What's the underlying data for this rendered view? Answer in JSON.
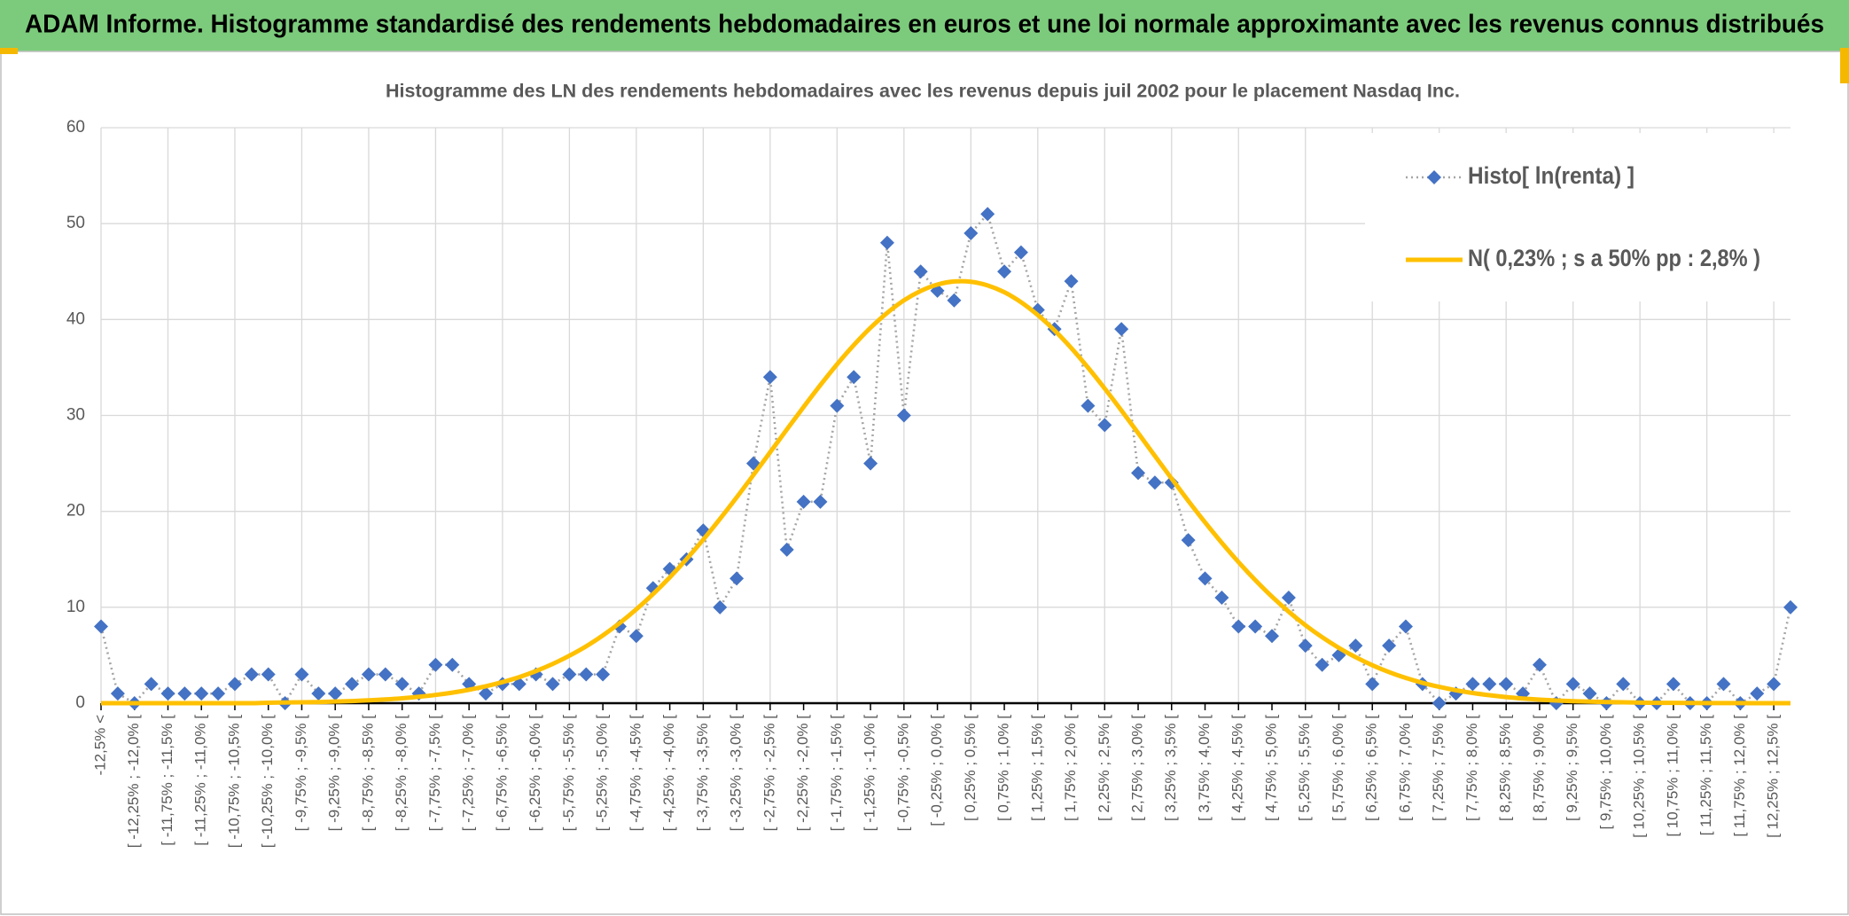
{
  "banner": {
    "title": "ADAM Informe. Histogramme standardisé des rendements hebdomadaires en euros et une loi normale approximante avec les revenus connus distribués"
  },
  "chart_data": {
    "type": "line",
    "title": "Histogramme des LN des rendements hebdomadaires avec les revenus depuis juil 2002 pour le placement Nasdaq Inc.",
    "categories": [
      "-12,5% <",
      null,
      "[ -12,25% ; -12,0% [",
      null,
      "[ -11,75% ; -11,5% [",
      null,
      "[ -11,25% ; -11,0% [",
      null,
      "[ -10,75% ; -10,5% [",
      null,
      "[ -10,25% ; -10,0% [",
      null,
      "[ -9,75% ; -9,5% [",
      null,
      "[ -9,25% ; -9,0% [",
      null,
      "[ -8,75% ; -8,5% [",
      null,
      "[ -8,25% ; -8,0% [",
      null,
      "[ -7,75% ; -7,5% [",
      null,
      "[ -7,25% ; -7,0% [",
      null,
      "[ -6,75% ; -6,5% [",
      null,
      "[ -6,25% ; -6,0% [",
      null,
      "[ -5,75% ; -5,5% [",
      null,
      "[ -5,25% ; -5,0% [",
      null,
      "[ -4,75% ; -4,5% [",
      null,
      "[ -4,25% ; -4,0% [",
      null,
      "[ -3,75% ; -3,5% [",
      null,
      "[ -3,25% ; -3,0% [",
      null,
      "[ -2,75% ; -2,5% [",
      null,
      "[ -2,25% ; -2,0% [",
      null,
      "[ -1,75% ; -1,5% [",
      null,
      "[ -1,25% ; -1,0% [",
      null,
      "[ -0,75% ; -0,5% [",
      null,
      "[ -0,25% ; 0,0% [",
      null,
      "[ 0,25% ; 0,5% [",
      null,
      "[ 0,75% ; 1,0% [",
      null,
      "[ 1,25% ; 1,5% [",
      null,
      "[ 1,75% ; 2,0% [",
      null,
      "[ 2,25% ; 2,5% [",
      null,
      "[ 2,75% ; 3,0% [",
      null,
      "[ 3,25% ; 3,5% [",
      null,
      "[ 3,75% ; 4,0% [",
      null,
      "[ 4,25% ; 4,5% [",
      null,
      "[ 4,75% ; 5,0% [",
      null,
      "[ 5,25% ; 5,5% [",
      null,
      "[ 5,75% ; 6,0% [",
      null,
      "[ 6,25% ; 6,5% [",
      null,
      "[ 6,75% ; 7,0% [",
      null,
      "[ 7,25% ; 7,5% [",
      null,
      "[ 7,75% ; 8,0% [",
      null,
      "[ 8,25% ; 8,5% [",
      null,
      "[ 8,75% ; 9,0% [",
      null,
      "[ 9,25% ; 9,5% [",
      null,
      "[ 9,75% ; 10,0% [",
      null,
      "[ 10,25% ; 10,5% [",
      null,
      "[ 10,75% ; 11,0% [",
      null,
      "[ 11,25% ; 11,5% [",
      null,
      "[ 11,75% ; 12,0% [",
      null,
      "[ 12,25% ; 12,5% [",
      null
    ],
    "series": [
      {
        "name": "Histo[ ln(renta) ]",
        "color": "#4472c4",
        "line_color": "#a5a5a5",
        "line_style": "dotted",
        "marker": "diamond",
        "values": [
          8,
          1,
          0,
          2,
          1,
          1,
          1,
          1,
          2,
          3,
          3,
          0,
          3,
          1,
          1,
          2,
          3,
          3,
          2,
          1,
          4,
          4,
          2,
          1,
          2,
          2,
          3,
          2,
          3,
          3,
          3,
          8,
          7,
          12,
          14,
          15,
          18,
          10,
          13,
          25,
          34,
          16,
          21,
          21,
          31,
          34,
          25,
          48,
          30,
          45,
          43,
          42,
          49,
          51,
          45,
          47,
          41,
          39,
          44,
          31,
          29,
          39,
          24,
          23,
          23,
          17,
          13,
          11,
          8,
          8,
          7,
          11,
          6,
          4,
          5,
          6,
          2,
          6,
          8,
          2,
          0,
          1,
          2,
          2,
          2,
          1,
          4,
          0,
          2,
          1,
          0,
          2,
          0,
          0,
          2,
          0,
          0,
          2,
          0,
          1,
          2,
          10
        ]
      },
      {
        "name": "N( 0,23% ; s a 50% pp : 2,8% )",
        "color": "#ffc000",
        "line_style": "solid",
        "marker": "none",
        "smooth": true,
        "values": [
          0,
          0,
          0,
          0,
          0,
          0,
          0,
          0,
          0,
          0,
          0.05,
          0.07,
          0.09,
          0.12,
          0.17,
          0.22,
          0.3,
          0.39,
          0.51,
          0.67,
          0.86,
          1.1,
          1.4,
          1.76,
          2.2,
          2.72,
          3.35,
          4.09,
          4.95,
          5.93,
          7.07,
          8.35,
          9.79,
          11.38,
          13.12,
          15.02,
          17.05,
          19.21,
          21.46,
          23.79,
          26.16,
          28.54,
          30.88,
          33.16,
          35.33,
          37.33,
          39.14,
          40.7,
          42,
          42.98,
          43.65,
          43.97,
          43.94,
          43.56,
          42.85,
          41.81,
          40.47,
          38.87,
          37.03,
          34.99,
          32.81,
          30.52,
          28.16,
          25.78,
          23.42,
          21.09,
          18.85,
          16.72,
          14.71,
          12.84,
          11.11,
          9.54,
          8.13,
          6.88,
          5.77,
          4.8,
          3.96,
          3.24,
          2.63,
          2.12,
          1.7,
          1.35,
          1.06,
          0.83,
          0.64,
          0.49,
          0.37,
          0.28,
          0.21,
          0.16,
          0.12,
          0.09,
          0.06,
          0.04,
          0.03,
          0.02,
          0.01,
          0.01,
          0.01,
          0,
          0,
          0
        ]
      }
    ],
    "ylim": [
      0,
      60
    ],
    "yticks": [
      0,
      10,
      20,
      30,
      40,
      50,
      60
    ],
    "grid": true,
    "legend": "top-right"
  }
}
